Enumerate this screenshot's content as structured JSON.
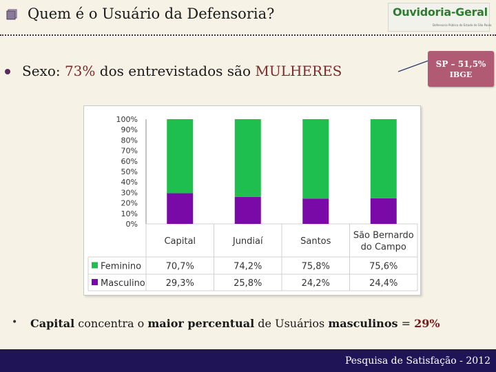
{
  "header": {
    "title": "Quem é o Usuário da Defensoria?",
    "logo_text": "Ouvidoria-Geral",
    "logo_subtext": "Defensoria Pública do Estado de São Paulo"
  },
  "headline": {
    "prefix": "Sexo: ",
    "percent": "73%",
    "middle": " dos entrevistados são ",
    "emphasis": "MULHERES"
  },
  "callout": {
    "line1": "SP – 51,5%",
    "line2": "IBGE"
  },
  "chart_data": {
    "type": "bar",
    "stacked": true,
    "percent_stacked": true,
    "categories": [
      "Capital",
      "Jundiaí",
      "Santos",
      "São Bernardo do Campo"
    ],
    "category_lines": [
      [
        "Capital"
      ],
      [
        "Jundiaí"
      ],
      [
        "Santos"
      ],
      [
        "São Bernardo",
        "do Campo"
      ]
    ],
    "series": [
      {
        "name": "Feminino",
        "values": [
          70.7,
          74.2,
          75.8,
          75.6
        ],
        "labels": [
          "70,7%",
          "74,2%",
          "75,8%",
          "75,6%"
        ],
        "color": "#1fbf4f"
      },
      {
        "name": "Masculino",
        "values": [
          29.3,
          25.8,
          24.2,
          24.4
        ],
        "labels": [
          "29,3%",
          "25,8%",
          "24,2%",
          "24,4%"
        ],
        "color": "#7a0aa8"
      }
    ],
    "ylim": [
      0,
      100
    ],
    "yticks": [
      "0%",
      "10%",
      "20%",
      "30%",
      "40%",
      "50%",
      "60%",
      "70%",
      "80%",
      "90%",
      "100%"
    ],
    "legend": "data-table",
    "grid": false
  },
  "footnote": {
    "bold1": "Capital",
    "text1": " concentra o ",
    "bold2": "maior percentual",
    "text2": " de Usuários ",
    "bold3": "masculinos",
    "text3": " = ",
    "value": "29%"
  },
  "footer": {
    "text": "Pesquisa de Satisfação - 2012"
  },
  "colors": {
    "background": "#f6f3e6",
    "footer": "#1f1556",
    "callout": "#b05a73",
    "emphasis": "#7a2a2a"
  }
}
